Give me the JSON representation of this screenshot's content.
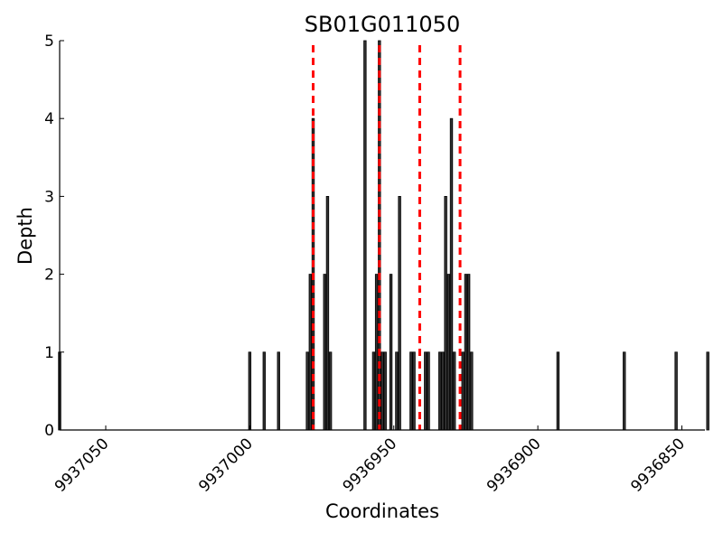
{
  "chart_data": {
    "type": "bar",
    "title": "SB01G011050",
    "xlabel": "Coordinates",
    "ylabel": "Depth",
    "x_reversed": true,
    "xlim": [
      9937066,
      9936842
    ],
    "ylim": [
      0,
      5
    ],
    "xticks": [
      9937050,
      9937000,
      9936950,
      9936900,
      9936850
    ],
    "yticks": [
      0,
      1,
      2,
      3,
      4,
      5
    ],
    "bar_width": 1,
    "bar_color": "#333333",
    "bar_edge_color": "#000000",
    "grid": false,
    "bars": [
      {
        "x": 9937066,
        "y": 1
      },
      {
        "x": 9937000,
        "y": 1
      },
      {
        "x": 9936995,
        "y": 1
      },
      {
        "x": 9936990,
        "y": 1
      },
      {
        "x": 9936980,
        "y": 1
      },
      {
        "x": 9936979,
        "y": 2
      },
      {
        "x": 9936978,
        "y": 4
      },
      {
        "x": 9936974,
        "y": 2
      },
      {
        "x": 9936973,
        "y": 3
      },
      {
        "x": 9936972,
        "y": 1
      },
      {
        "x": 9936960,
        "y": 5
      },
      {
        "x": 9936957,
        "y": 1
      },
      {
        "x": 9936956,
        "y": 2
      },
      {
        "x": 9936955,
        "y": 5
      },
      {
        "x": 9936954,
        "y": 1
      },
      {
        "x": 9936953,
        "y": 1
      },
      {
        "x": 9936951,
        "y": 2
      },
      {
        "x": 9936949,
        "y": 1
      },
      {
        "x": 9936948,
        "y": 3
      },
      {
        "x": 9936944,
        "y": 1
      },
      {
        "x": 9936943,
        "y": 1
      },
      {
        "x": 9936939,
        "y": 1
      },
      {
        "x": 9936938,
        "y": 1
      },
      {
        "x": 9936934,
        "y": 1
      },
      {
        "x": 9936933,
        "y": 1
      },
      {
        "x": 9936932,
        "y": 3
      },
      {
        "x": 9936931,
        "y": 2
      },
      {
        "x": 9936930,
        "y": 4
      },
      {
        "x": 9936929,
        "y": 1
      },
      {
        "x": 9936926,
        "y": 1
      },
      {
        "x": 9936925,
        "y": 2
      },
      {
        "x": 9936924,
        "y": 2
      },
      {
        "x": 9936923,
        "y": 1
      },
      {
        "x": 9936893,
        "y": 1
      },
      {
        "x": 9936870,
        "y": 1
      },
      {
        "x": 9936852,
        "y": 1
      },
      {
        "x": 9936841,
        "y": 1
      }
    ],
    "vlines": {
      "x": [
        9936978,
        9936955,
        9936941,
        9936927
      ],
      "color": "#ff0000",
      "style": "dashed"
    }
  }
}
